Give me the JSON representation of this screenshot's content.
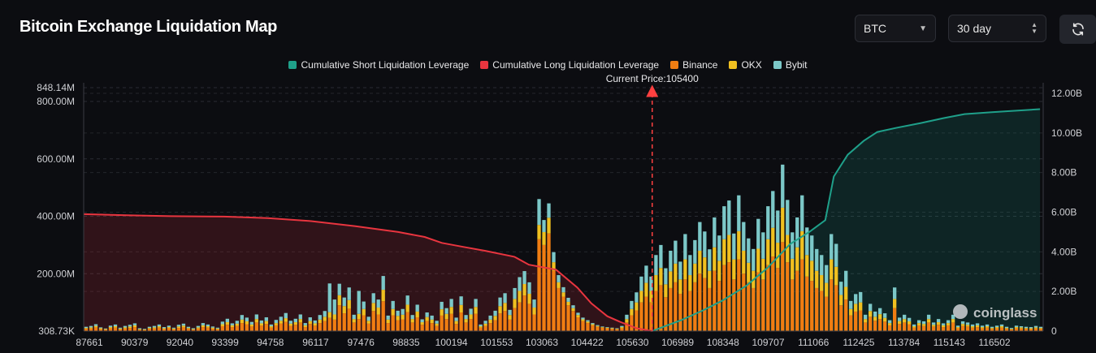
{
  "header": {
    "title": "Bitcoin Exchange Liquidation Map",
    "coin_select": "BTC",
    "range_select": "30 day"
  },
  "chart_data": {
    "type": "bar",
    "title": "",
    "current_price_label": "Current Price:105400",
    "current_price": 105400,
    "x_tick_labels": [
      "87661",
      "90379",
      "92040",
      "93399",
      "94758",
      "96117",
      "97476",
      "98835",
      "100194",
      "101553",
      "103063",
      "104422",
      "105630",
      "106989",
      "108348",
      "109707",
      "111066",
      "112425",
      "113784",
      "115143",
      "116502"
    ],
    "y_left_tick_labels": [
      "308.73K",
      "200.00M",
      "400.00M",
      "600.00M",
      "800.00M",
      "848.14M"
    ],
    "y_left_ticks": [
      0,
      200,
      400,
      600,
      800,
      848.14
    ],
    "y_left_unit": "M",
    "y_left_range": [
      0,
      848.14
    ],
    "y_right_tick_labels": [
      "0",
      "2.00B",
      "4.00B",
      "6.00B",
      "8.00B",
      "10.00B",
      "12.00B"
    ],
    "y_right_ticks": [
      0,
      2,
      4,
      6,
      8,
      10,
      12
    ],
    "y_right_unit": "B",
    "y_right_range": [
      0,
      12
    ],
    "grid": true,
    "legend_position": "top-center",
    "colors": {
      "short": "#1fa08a",
      "long": "#e8353f",
      "binance": "#f07d12",
      "okx": "#f0c020",
      "bybit": "#7cc8c8"
    },
    "legend": [
      {
        "name": "Cumulative Short Liquidation Leverage",
        "color": "#1fa08a"
      },
      {
        "name": "Cumulative Long Liquidation Leverage",
        "color": "#e8353f"
      },
      {
        "name": "Binance",
        "color": "#f07d12"
      },
      {
        "name": "OKX",
        "color": "#f0c020"
      },
      {
        "name": "Bybit",
        "color": "#7cc8c8"
      }
    ],
    "long_cumulative_billions": {
      "x": [
        87661,
        89000,
        90379,
        92040,
        93399,
        94758,
        96117,
        97476,
        98300,
        98835,
        99500,
        100194,
        101100,
        101553,
        102400,
        103063,
        103500,
        104000,
        104422,
        104900,
        105400
      ],
      "y": [
        5.9,
        5.85,
        5.8,
        5.78,
        5.7,
        5.55,
        5.3,
        5.0,
        4.75,
        4.45,
        4.25,
        4.05,
        3.75,
        3.35,
        3.1,
        2.2,
        1.4,
        0.75,
        0.45,
        0.15,
        0.0
      ]
    },
    "short_cumulative_billions": {
      "x": [
        105400,
        105800,
        106300,
        106989,
        107600,
        108348,
        109000,
        109707,
        110300,
        110800,
        111066,
        111500,
        112000,
        112425,
        113000,
        113784,
        114500,
        115143,
        116000,
        116502,
        117500
      ],
      "y": [
        0.0,
        0.25,
        0.55,
        1.05,
        1.55,
        2.3,
        3.2,
        4.4,
        5.0,
        5.6,
        7.8,
        8.9,
        9.6,
        10.05,
        10.25,
        10.5,
        10.75,
        10.95,
        11.05,
        11.1,
        11.2
      ]
    },
    "bars": {
      "price_min": 87661,
      "price_max": 117600,
      "step": 262,
      "binance_m": [
        8,
        9,
        13,
        7,
        5,
        10,
        12,
        6,
        9,
        11,
        14,
        5,
        4,
        8,
        9,
        12,
        7,
        10,
        6,
        11,
        13,
        8,
        5,
        9,
        14,
        12,
        8,
        6,
        17,
        22,
        14,
        18,
        28,
        24,
        16,
        30,
        19,
        25,
        12,
        20,
        26,
        32,
        18,
        22,
        30,
        14,
        25,
        19,
        28,
        35,
        46,
        40,
        90,
        62,
        78,
        30,
        42,
        55,
        26,
        70,
        58,
        104,
        28,
        55,
        38,
        41,
        66,
        30,
        48,
        22,
        35,
        28,
        18,
        54,
        42,
        60,
        25,
        65,
        30,
        42,
        60,
        12,
        18,
        28,
        38,
        62,
        70,
        40,
        80,
        100,
        124,
        95,
        58,
        320,
        300,
        340,
        210,
        150,
        120,
        90,
        70,
        48,
        35,
        28,
        20,
        15,
        12,
        10,
        8,
        6,
        10,
        30,
        55,
        72,
        100,
        120,
        100,
        140,
        160,
        118,
        150,
        170,
        130,
        180,
        140,
        170,
        200,
        185,
        150,
        210,
        175,
        230,
        240,
        180,
        250,
        200,
        170,
        150,
        205,
        180,
        230,
        260,
        220,
        310,
        240,
        180,
        210,
        250,
        190,
        175,
        150,
        140,
        120,
        180,
        160,
        90,
        110,
        55,
        68,
        72,
        30,
        50,
        36,
        42,
        33,
        20,
        80,
        25,
        30,
        24,
        12,
        20,
        18,
        30,
        16,
        22,
        14,
        20,
        30,
        10,
        18,
        16,
        12,
        14,
        10,
        12,
        8,
        10,
        12,
        8,
        6,
        10,
        9,
        8,
        7,
        9,
        8
      ],
      "okx_m": [
        3,
        4,
        5,
        3,
        2,
        4,
        5,
        3,
        4,
        5,
        6,
        2,
        2,
        3,
        4,
        5,
        3,
        4,
        3,
        5,
        6,
        3,
        2,
        4,
        6,
        5,
        4,
        3,
        7,
        9,
        6,
        8,
        12,
        10,
        7,
        12,
        8,
        10,
        5,
        8,
        10,
        13,
        8,
        9,
        12,
        6,
        10,
        8,
        12,
        15,
        20,
        18,
        35,
        25,
        30,
        12,
        18,
        22,
        10,
        28,
        24,
        40,
        12,
        22,
        15,
        16,
        26,
        12,
        20,
        9,
        14,
        12,
        8,
        22,
        18,
        24,
        10,
        26,
        12,
        16,
        24,
        5,
        8,
        12,
        15,
        25,
        28,
        16,
        32,
        40,
        40,
        35,
        24,
        50,
        45,
        55,
        30,
        20,
        15,
        12,
        10,
        8,
        6,
        5,
        4,
        3,
        2,
        2,
        2,
        2,
        4,
        12,
        22,
        28,
        40,
        48,
        40,
        55,
        60,
        45,
        58,
        65,
        50,
        70,
        55,
        65,
        80,
        72,
        60,
        82,
        70,
        90,
        95,
        70,
        98,
        80,
        68,
        60,
        82,
        72,
        90,
        100,
        88,
        120,
        95,
        72,
        82,
        98,
        75,
        70,
        60,
        55,
        48,
        70,
        64,
        36,
        44,
        22,
        27,
        28,
        12,
        20,
        14,
        17,
        13,
        8,
        32,
        10,
        12,
        10,
        5,
        8,
        7,
        12,
        6,
        9,
        6,
        8,
        12,
        4,
        7,
        6,
        5,
        6,
        4,
        5,
        3,
        4,
        5,
        3,
        2,
        4,
        4,
        3,
        3,
        4,
        3
      ],
      "bybit_m": [
        4,
        5,
        6,
        3,
        2,
        5,
        6,
        3,
        5,
        6,
        7,
        3,
        2,
        4,
        5,
        6,
        4,
        5,
        3,
        6,
        7,
        4,
        3,
        5,
        8,
        6,
        4,
        3,
        9,
        12,
        7,
        10,
        16,
        13,
        9,
        16,
        10,
        13,
        6,
        11,
        14,
        18,
        10,
        12,
        16,
        8,
        13,
        10,
        16,
        20,
        100,
        52,
        40,
        30,
        44,
        15,
        80,
        26,
        14,
        34,
        28,
        48,
        14,
        28,
        18,
        20,
        32,
        14,
        24,
        10,
        16,
        14,
        10,
        26,
        20,
        28,
        12,
        30,
        14,
        20,
        28,
        6,
        10,
        14,
        18,
        30,
        34,
        18,
        38,
        48,
        45,
        40,
        28,
        90,
        42,
        50,
        35,
        25,
        18,
        14,
        10,
        8,
        6,
        5,
        4,
        3,
        2,
        2,
        2,
        2,
        4,
        15,
        28,
        35,
        50,
        60,
        50,
        70,
        80,
        56,
        72,
        80,
        62,
        88,
        70,
        82,
        100,
        90,
        75,
        104,
        88,
        115,
        120,
        90,
        125,
        100,
        85,
        76,
        104,
        92,
        115,
        128,
        112,
        150,
        122,
        92,
        104,
        125,
        96,
        88,
        76,
        70,
        62,
        88,
        80,
        46,
        56,
        28,
        34,
        36,
        15,
        25,
        18,
        21,
        16,
        10,
        40,
        12,
        15,
        12,
        6,
        10,
        9,
        15,
        8,
        11,
        7,
        10,
        15,
        5,
        9,
        8,
        6,
        7,
        5,
        6,
        4,
        5,
        6,
        4,
        3,
        5,
        4,
        4,
        4,
        5,
        4
      ]
    }
  }
}
